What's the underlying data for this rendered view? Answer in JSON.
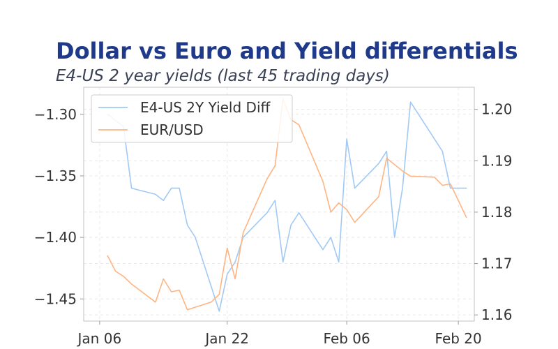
{
  "chart_data": {
    "type": "line",
    "title": "Dollar vs Euro and Yield differentials",
    "subtitle": "E4-US 2 year yields (last 45 trading days)",
    "x_ticks": [
      "Jan 06",
      "Jan 22",
      "Feb 06",
      "Feb 20"
    ],
    "y_left_ticks": [
      "−1.30",
      "−1.35",
      "−1.40",
      "−1.45"
    ],
    "y_right_ticks": [
      "1.20",
      "1.19",
      "1.18",
      "1.17",
      "1.16"
    ],
    "ylim_left": [
      -1.468,
      -1.278
    ],
    "ylim_right": [
      1.1588,
      1.2043
    ],
    "xlim": [
      "2026-01-04",
      "2026-02-22"
    ],
    "legend_position": "top-left",
    "grid": true,
    "series": [
      {
        "name": "E4-US 2Y Yield Diff",
        "axis": "left",
        "color": "#a1c9f4",
        "points": [
          [
            "2026-01-07",
            -1.3
          ],
          [
            "2026-01-09",
            -1.31
          ],
          [
            "2026-01-10",
            -1.36
          ],
          [
            "2026-01-13",
            -1.365
          ],
          [
            "2026-01-14",
            -1.37
          ],
          [
            "2026-01-15",
            -1.36
          ],
          [
            "2026-01-16",
            -1.36
          ],
          [
            "2026-01-17",
            -1.39
          ],
          [
            "2026-01-18",
            -1.4
          ],
          [
            "2026-01-21",
            -1.46
          ],
          [
            "2026-01-22",
            -1.43
          ],
          [
            "2026-01-23",
            -1.42
          ],
          [
            "2026-01-24",
            -1.4
          ],
          [
            "2026-01-27",
            -1.38
          ],
          [
            "2026-01-28",
            -1.37
          ],
          [
            "2026-01-29",
            -1.42
          ],
          [
            "2026-01-30",
            -1.39
          ],
          [
            "2026-01-31",
            -1.38
          ],
          [
            "2026-02-03",
            -1.41
          ],
          [
            "2026-02-04",
            -1.4
          ],
          [
            "2026-02-05",
            -1.42
          ],
          [
            "2026-02-06",
            -1.32
          ],
          [
            "2026-02-07",
            -1.36
          ],
          [
            "2026-02-10",
            -1.34
          ],
          [
            "2026-02-11",
            -1.33
          ],
          [
            "2026-02-12",
            -1.4
          ],
          [
            "2026-02-13",
            -1.36
          ],
          [
            "2026-02-14",
            -1.29
          ],
          [
            "2026-02-18",
            -1.33
          ],
          [
            "2026-02-19",
            -1.36
          ],
          [
            "2026-02-20",
            -1.36
          ],
          [
            "2026-02-21",
            -1.36
          ]
        ]
      },
      {
        "name": "EUR/USD",
        "axis": "right",
        "color": "#ffb482",
        "points": [
          [
            "2026-01-07",
            1.1715
          ],
          [
            "2026-01-08",
            1.1685
          ],
          [
            "2026-01-09",
            1.1675
          ],
          [
            "2026-01-10",
            1.166
          ],
          [
            "2026-01-13",
            1.1625
          ],
          [
            "2026-01-14",
            1.167
          ],
          [
            "2026-01-15",
            1.1645
          ],
          [
            "2026-01-16",
            1.1648
          ],
          [
            "2026-01-17",
            1.161
          ],
          [
            "2026-01-20",
            1.1625
          ],
          [
            "2026-01-21",
            1.164
          ],
          [
            "2026-01-22",
            1.173
          ],
          [
            "2026-01-23",
            1.167
          ],
          [
            "2026-01-24",
            1.176
          ],
          [
            "2026-01-27",
            1.1865
          ],
          [
            "2026-01-28",
            1.189
          ],
          [
            "2026-01-29",
            1.202
          ],
          [
            "2026-01-30",
            1.198
          ],
          [
            "2026-01-31",
            1.197
          ],
          [
            "2026-02-03",
            1.186
          ],
          [
            "2026-02-04",
            1.18
          ],
          [
            "2026-02-05",
            1.1818
          ],
          [
            "2026-02-06",
            1.1805
          ],
          [
            "2026-02-07",
            1.178
          ],
          [
            "2026-02-10",
            1.183
          ],
          [
            "2026-02-11",
            1.1905
          ],
          [
            "2026-02-13",
            1.188
          ],
          [
            "2026-02-14",
            1.187
          ],
          [
            "2026-02-17",
            1.1868
          ],
          [
            "2026-02-18",
            1.1852
          ],
          [
            "2026-02-19",
            1.1855
          ],
          [
            "2026-02-21",
            1.179
          ]
        ]
      }
    ]
  }
}
